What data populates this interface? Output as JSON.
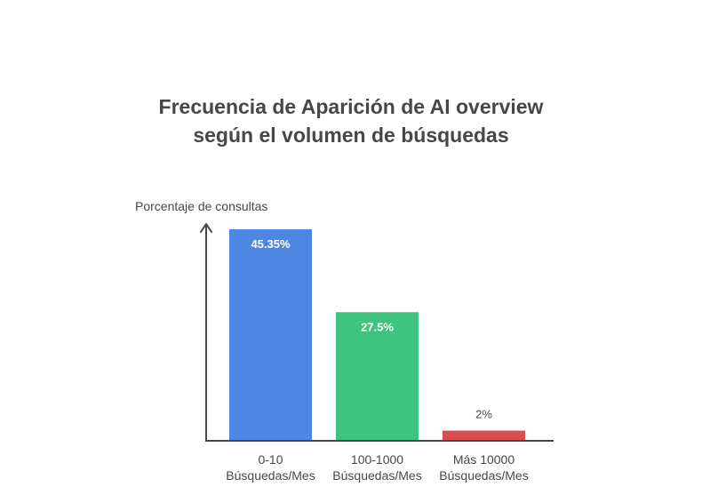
{
  "chart_data": {
    "type": "bar",
    "title": "Frecuencia de Aparición de AI overview según el volumen de búsquedas",
    "title_lines": [
      "Frecuencia de Aparición de AI overview",
      "según el volumen de búsquedas"
    ],
    "ylabel": "Porcentaje de consultas",
    "xlabel": "",
    "categories": [
      [
        "0-10",
        "Búsquedas/Mes"
      ],
      [
        "100-1000",
        "Búsquedas/Mes"
      ],
      [
        "Más 10000",
        "Búsquedas/Mes"
      ]
    ],
    "values": [
      45.35,
      27.5,
      2
    ],
    "value_labels": [
      "45.35%",
      "27.5%",
      "2%"
    ],
    "colors": [
      "#4e86e4",
      "#3ec47e",
      "#d94f4f"
    ],
    "ylim": [
      0,
      45.35
    ],
    "grid": false,
    "legend": "none"
  }
}
